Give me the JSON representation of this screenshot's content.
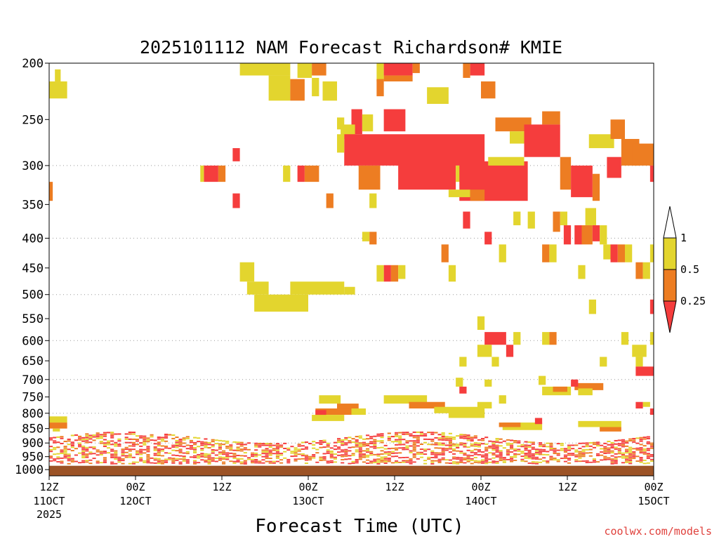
{
  "chart_data": {
    "type": "heatmap",
    "title": "2025101112 NAM Forecast Richardson# KMIE",
    "xlabel": "Forecast Time (UTC)",
    "ylabel": "",
    "credit": "coolwx.com/models",
    "y_axis": {
      "scale": "log-pressure",
      "range": [
        1025,
        200
      ],
      "ticks": [
        200,
        250,
        300,
        350,
        400,
        450,
        500,
        550,
        600,
        650,
        700,
        750,
        800,
        850,
        900,
        950,
        1000
      ]
    },
    "x_axis": {
      "range_hours": [
        0,
        84
      ],
      "ticks": [
        {
          "hour": 0,
          "top": "12Z",
          "bottom": "11OCT",
          "extra": "2025"
        },
        {
          "hour": 12,
          "top": "00Z",
          "bottom": "12OCT"
        },
        {
          "hour": 24,
          "top": "12Z",
          "bottom": ""
        },
        {
          "hour": 36,
          "top": "00Z",
          "bottom": "13OCT"
        },
        {
          "hour": 48,
          "top": "12Z",
          "bottom": ""
        },
        {
          "hour": 60,
          "top": "00Z",
          "bottom": "14OCT"
        },
        {
          "hour": 72,
          "top": "12Z",
          "bottom": ""
        },
        {
          "hour": 84,
          "top": "00Z",
          "bottom": "15OCT"
        }
      ]
    },
    "grid_pressures": [
      300,
      400,
      500,
      600,
      700,
      800,
      900,
      1000
    ],
    "colorbar": {
      "levels": [
        "1",
        "0.5",
        "0.25"
      ],
      "colors": {
        "lt025": "#f53d3d",
        "025_05": "#ed7d22",
        "05_1": "#e3d52e"
      }
    },
    "ground_color": "#9c5326",
    "cells": [
      {
        "t0": 0,
        "t1": 2.5,
        "p0": 215,
        "p1": 230,
        "c": "y"
      },
      {
        "t0": 0.8,
        "t1": 1.6,
        "p0": 205,
        "p1": 215,
        "c": "y"
      },
      {
        "t0": 0,
        "t1": 0.5,
        "p0": 320,
        "p1": 345,
        "c": "o"
      },
      {
        "t0": 26.5,
        "t1": 33.5,
        "p0": 200,
        "p1": 210,
        "c": "y"
      },
      {
        "t0": 30.5,
        "t1": 33.5,
        "p0": 210,
        "p1": 232,
        "c": "y"
      },
      {
        "t0": 34.5,
        "t1": 36.5,
        "p0": 200,
        "p1": 212,
        "c": "y"
      },
      {
        "t0": 36.5,
        "t1": 38.5,
        "p0": 200,
        "p1": 210,
        "c": "o"
      },
      {
        "t0": 33.5,
        "t1": 35.5,
        "p0": 213,
        "p1": 232,
        "c": "o"
      },
      {
        "t0": 36.5,
        "t1": 37.5,
        "p0": 212,
        "p1": 228,
        "c": "y"
      },
      {
        "t0": 38,
        "t1": 40,
        "p0": 215,
        "p1": 232,
        "c": "y"
      },
      {
        "t0": 40,
        "t1": 41,
        "p0": 248,
        "p1": 260,
        "c": "y"
      },
      {
        "t0": 45.5,
        "t1": 46.5,
        "p0": 200,
        "p1": 215,
        "c": "y"
      },
      {
        "t0": 46.5,
        "t1": 50.5,
        "p0": 200,
        "p1": 210,
        "c": "r"
      },
      {
        "t0": 50.5,
        "t1": 51.5,
        "p0": 200,
        "p1": 208,
        "c": "o"
      },
      {
        "t0": 45.5,
        "t1": 46.5,
        "p0": 213,
        "p1": 228,
        "c": "o"
      },
      {
        "t0": 46.5,
        "t1": 50.5,
        "p0": 210,
        "p1": 215,
        "c": "o"
      },
      {
        "t0": 57.5,
        "t1": 58.5,
        "p0": 200,
        "p1": 212,
        "c": "o"
      },
      {
        "t0": 58.5,
        "t1": 60.5,
        "p0": 200,
        "p1": 210,
        "c": "r"
      },
      {
        "t0": 60,
        "t1": 62,
        "p0": 215,
        "p1": 230,
        "c": "o"
      },
      {
        "t0": 52.5,
        "t1": 55.5,
        "p0": 220,
        "p1": 235,
        "c": "y"
      },
      {
        "t0": 42,
        "t1": 43.5,
        "p0": 240,
        "p1": 265,
        "c": "r"
      },
      {
        "t0": 43.5,
        "t1": 45,
        "p0": 245,
        "p1": 262,
        "c": "y"
      },
      {
        "t0": 46.5,
        "t1": 49.5,
        "p0": 240,
        "p1": 262,
        "c": "r"
      },
      {
        "t0": 40.5,
        "t1": 42.5,
        "p0": 255,
        "p1": 270,
        "c": "y"
      },
      {
        "t0": 41,
        "t1": 60.5,
        "p0": 265,
        "p1": 300,
        "c": "r"
      },
      {
        "t0": 40,
        "t1": 41,
        "p0": 265,
        "p1": 285,
        "c": "y"
      },
      {
        "t0": 43,
        "t1": 46,
        "p0": 300,
        "p1": 330,
        "c": "o"
      },
      {
        "t0": 48.5,
        "t1": 56.5,
        "p0": 295,
        "p1": 330,
        "c": "r"
      },
      {
        "t0": 56.5,
        "t1": 58.5,
        "p0": 300,
        "p1": 320,
        "c": "y"
      },
      {
        "t0": 57,
        "t1": 66.5,
        "p0": 295,
        "p1": 345,
        "c": "r"
      },
      {
        "t0": 55.5,
        "t1": 58.5,
        "p0": 330,
        "p1": 340,
        "c": "y"
      },
      {
        "t0": 58.5,
        "t1": 60.5,
        "p0": 330,
        "p1": 345,
        "c": "o"
      },
      {
        "t0": 61,
        "t1": 66,
        "p0": 290,
        "p1": 300,
        "c": "y"
      },
      {
        "t0": 62,
        "t1": 67,
        "p0": 248,
        "p1": 262,
        "c": "o"
      },
      {
        "t0": 64,
        "t1": 66,
        "p0": 262,
        "p1": 275,
        "c": "y"
      },
      {
        "t0": 66,
        "t1": 71,
        "p0": 255,
        "p1": 290,
        "c": "r"
      },
      {
        "t0": 68.5,
        "t1": 71,
        "p0": 242,
        "p1": 255,
        "c": "o"
      },
      {
        "t0": 71,
        "t1": 72.5,
        "p0": 290,
        "p1": 330,
        "c": "o"
      },
      {
        "t0": 72.5,
        "t1": 75.5,
        "p0": 300,
        "p1": 340,
        "c": "r"
      },
      {
        "t0": 75.5,
        "t1": 76.5,
        "p0": 310,
        "p1": 345,
        "c": "o"
      },
      {
        "t0": 75,
        "t1": 78.5,
        "p0": 265,
        "p1": 280,
        "c": "y"
      },
      {
        "t0": 78,
        "t1": 80,
        "p0": 250,
        "p1": 270,
        "c": "o"
      },
      {
        "t0": 77.5,
        "t1": 79.5,
        "p0": 290,
        "p1": 315,
        "c": "r"
      },
      {
        "t0": 79.5,
        "t1": 82,
        "p0": 270,
        "p1": 300,
        "c": "o"
      },
      {
        "t0": 81,
        "t1": 84,
        "p0": 275,
        "p1": 300,
        "c": "o"
      },
      {
        "t0": 83.5,
        "t1": 84,
        "p0": 300,
        "p1": 320,
        "c": "r"
      },
      {
        "t0": 21.5,
        "t1": 23.5,
        "p0": 300,
        "p1": 320,
        "c": "r"
      },
      {
        "t0": 21,
        "t1": 21.5,
        "p0": 300,
        "p1": 320,
        "c": "y"
      },
      {
        "t0": 23.5,
        "t1": 24.5,
        "p0": 300,
        "p1": 320,
        "c": "o"
      },
      {
        "t0": 25.5,
        "t1": 26.5,
        "p0": 280,
        "p1": 295,
        "c": "r"
      },
      {
        "t0": 25.5,
        "t1": 26.5,
        "p0": 335,
        "p1": 355,
        "c": "r"
      },
      {
        "t0": 32.5,
        "t1": 33.5,
        "p0": 300,
        "p1": 320,
        "c": "y"
      },
      {
        "t0": 34.5,
        "t1": 35.5,
        "p0": 300,
        "p1": 320,
        "c": "r"
      },
      {
        "t0": 35.5,
        "t1": 37.5,
        "p0": 300,
        "p1": 320,
        "c": "o"
      },
      {
        "t0": 38.5,
        "t1": 39.5,
        "p0": 335,
        "p1": 355,
        "c": "o"
      },
      {
        "t0": 44.5,
        "t1": 45.5,
        "p0": 335,
        "p1": 355,
        "c": "y"
      },
      {
        "t0": 44.5,
        "t1": 45.5,
        "p0": 390,
        "p1": 410,
        "c": "o"
      },
      {
        "t0": 43.5,
        "t1": 44.5,
        "p0": 390,
        "p1": 405,
        "c": "y"
      },
      {
        "t0": 57.5,
        "t1": 58.5,
        "p0": 360,
        "p1": 385,
        "c": "r"
      },
      {
        "t0": 60.5,
        "t1": 61.5,
        "p0": 390,
        "p1": 410,
        "c": "r"
      },
      {
        "t0": 64.5,
        "t1": 65.5,
        "p0": 360,
        "p1": 380,
        "c": "y"
      },
      {
        "t0": 66.5,
        "t1": 67.5,
        "p0": 360,
        "p1": 385,
        "c": "y"
      },
      {
        "t0": 70,
        "t1": 71,
        "p0": 360,
        "p1": 390,
        "c": "o"
      },
      {
        "t0": 71,
        "t1": 72,
        "p0": 360,
        "p1": 380,
        "c": "y"
      },
      {
        "t0": 71.5,
        "t1": 72.5,
        "p0": 380,
        "p1": 410,
        "c": "r"
      },
      {
        "t0": 73,
        "t1": 74,
        "p0": 380,
        "p1": 410,
        "c": "r"
      },
      {
        "t0": 74,
        "t1": 75.5,
        "p0": 380,
        "p1": 410,
        "c": "o"
      },
      {
        "t0": 75.5,
        "t1": 76.5,
        "p0": 380,
        "p1": 405,
        "c": "r"
      },
      {
        "t0": 76.5,
        "t1": 77.5,
        "p0": 380,
        "p1": 410,
        "c": "y"
      },
      {
        "t0": 74.5,
        "t1": 76,
        "p0": 355,
        "p1": 380,
        "c": "y"
      },
      {
        "t0": 77,
        "t1": 78,
        "p0": 410,
        "p1": 435,
        "c": "y"
      },
      {
        "t0": 78,
        "t1": 79,
        "p0": 410,
        "p1": 440,
        "c": "r"
      },
      {
        "t0": 79,
        "t1": 80,
        "p0": 410,
        "p1": 440,
        "c": "o"
      },
      {
        "t0": 80,
        "t1": 81,
        "p0": 410,
        "p1": 440,
        "c": "y"
      },
      {
        "t0": 81.5,
        "t1": 82.5,
        "p0": 440,
        "p1": 470,
        "c": "o"
      },
      {
        "t0": 82.5,
        "t1": 83.5,
        "p0": 440,
        "p1": 470,
        "c": "y"
      },
      {
        "t0": 68.5,
        "t1": 69.5,
        "p0": 410,
        "p1": 440,
        "c": "o"
      },
      {
        "t0": 69.5,
        "t1": 70.5,
        "p0": 410,
        "p1": 440,
        "c": "y"
      },
      {
        "t0": 62.5,
        "t1": 63.5,
        "p0": 410,
        "p1": 440,
        "c": "y"
      },
      {
        "t0": 54.5,
        "t1": 55.5,
        "p0": 410,
        "p1": 440,
        "c": "o"
      },
      {
        "t0": 55.5,
        "t1": 56.5,
        "p0": 445,
        "p1": 475,
        "c": "y"
      },
      {
        "t0": 46.5,
        "t1": 47.5,
        "p0": 445,
        "p1": 475,
        "c": "r"
      },
      {
        "t0": 47.5,
        "t1": 48.5,
        "p0": 445,
        "p1": 475,
        "c": "o"
      },
      {
        "t0": 45.5,
        "t1": 46.5,
        "p0": 445,
        "p1": 475,
        "c": "y"
      },
      {
        "t0": 48.5,
        "t1": 49.5,
        "p0": 445,
        "p1": 470,
        "c": "y"
      },
      {
        "t0": 73.5,
        "t1": 74.5,
        "p0": 445,
        "p1": 470,
        "c": "y"
      },
      {
        "t0": 83.5,
        "t1": 84,
        "p0": 410,
        "p1": 440,
        "c": "y"
      },
      {
        "t0": 26.5,
        "t1": 28.5,
        "p0": 440,
        "p1": 475,
        "c": "y"
      },
      {
        "t0": 27.5,
        "t1": 30.5,
        "p0": 475,
        "p1": 500,
        "c": "y"
      },
      {
        "t0": 28.5,
        "t1": 36,
        "p0": 500,
        "p1": 535,
        "c": "y"
      },
      {
        "t0": 33.5,
        "t1": 41,
        "p0": 475,
        "p1": 500,
        "c": "y"
      },
      {
        "t0": 41,
        "t1": 42.5,
        "p0": 485,
        "p1": 500,
        "c": "y"
      },
      {
        "t0": 83.5,
        "t1": 84,
        "p0": 510,
        "p1": 540,
        "c": "r"
      },
      {
        "t0": 75,
        "t1": 76,
        "p0": 510,
        "p1": 540,
        "c": "y"
      },
      {
        "t0": 59.5,
        "t1": 60.5,
        "p0": 545,
        "p1": 575,
        "c": "y"
      },
      {
        "t0": 60.5,
        "t1": 63.5,
        "p0": 580,
        "p1": 610,
        "c": "r"
      },
      {
        "t0": 64.5,
        "t1": 65.5,
        "p0": 580,
        "p1": 610,
        "c": "y"
      },
      {
        "t0": 68.5,
        "t1": 69.5,
        "p0": 580,
        "p1": 610,
        "c": "y"
      },
      {
        "t0": 69.5,
        "t1": 70.5,
        "p0": 580,
        "p1": 610,
        "c": "o"
      },
      {
        "t0": 59.5,
        "t1": 61.5,
        "p0": 610,
        "p1": 640,
        "c": "y"
      },
      {
        "t0": 63.5,
        "t1": 64.5,
        "p0": 610,
        "p1": 640,
        "c": "r"
      },
      {
        "t0": 79.5,
        "t1": 80.5,
        "p0": 580,
        "p1": 610,
        "c": "y"
      },
      {
        "t0": 81,
        "t1": 83,
        "p0": 610,
        "p1": 640,
        "c": "y"
      },
      {
        "t0": 83.5,
        "t1": 84,
        "p0": 580,
        "p1": 610,
        "c": "y"
      },
      {
        "t0": 57,
        "t1": 58,
        "p0": 640,
        "p1": 665,
        "c": "y"
      },
      {
        "t0": 61.5,
        "t1": 62.5,
        "p0": 640,
        "p1": 665,
        "c": "y"
      },
      {
        "t0": 76.5,
        "t1": 77.5,
        "p0": 640,
        "p1": 665,
        "c": "y"
      },
      {
        "t0": 81.5,
        "t1": 82.5,
        "p0": 640,
        "p1": 665,
        "c": "y"
      },
      {
        "t0": 81.5,
        "t1": 84,
        "p0": 665,
        "p1": 690,
        "c": "r"
      },
      {
        "t0": 56.5,
        "t1": 57.5,
        "p0": 695,
        "p1": 720,
        "c": "y"
      },
      {
        "t0": 68,
        "t1": 69,
        "p0": 690,
        "p1": 715,
        "c": "y"
      },
      {
        "t0": 68.5,
        "t1": 72.5,
        "p0": 720,
        "p1": 745,
        "c": "y"
      },
      {
        "t0": 70,
        "t1": 72,
        "p0": 720,
        "p1": 735,
        "c": "o"
      },
      {
        "t0": 73,
        "t1": 77,
        "p0": 710,
        "p1": 730,
        "c": "o"
      },
      {
        "t0": 72.5,
        "t1": 73.5,
        "p0": 700,
        "p1": 720,
        "c": "r"
      },
      {
        "t0": 73.5,
        "t1": 75.5,
        "p0": 725,
        "p1": 745,
        "c": "y"
      },
      {
        "t0": 57,
        "t1": 58,
        "p0": 720,
        "p1": 740,
        "c": "r"
      },
      {
        "t0": 60.5,
        "t1": 61.5,
        "p0": 700,
        "p1": 720,
        "c": "y"
      },
      {
        "t0": 62.5,
        "t1": 63.5,
        "p0": 745,
        "p1": 770,
        "c": "y"
      },
      {
        "t0": 37.5,
        "t1": 40.5,
        "p0": 745,
        "p1": 770,
        "c": "y"
      },
      {
        "t0": 40,
        "t1": 43,
        "p0": 770,
        "p1": 790,
        "c": "o"
      },
      {
        "t0": 42,
        "t1": 44,
        "p0": 785,
        "p1": 805,
        "c": "y"
      },
      {
        "t0": 37,
        "t1": 42,
        "p0": 785,
        "p1": 805,
        "c": "o"
      },
      {
        "t0": 37,
        "t1": 38.5,
        "p0": 790,
        "p1": 810,
        "c": "r"
      },
      {
        "t0": 36.5,
        "t1": 41,
        "p0": 805,
        "p1": 825,
        "c": "y"
      },
      {
        "t0": 46.5,
        "t1": 52.5,
        "p0": 745,
        "p1": 770,
        "c": "y"
      },
      {
        "t0": 50,
        "t1": 55,
        "p0": 765,
        "p1": 785,
        "c": "o"
      },
      {
        "t0": 53.5,
        "t1": 60.5,
        "p0": 780,
        "p1": 800,
        "c": "y"
      },
      {
        "t0": 55.5,
        "t1": 60.5,
        "p0": 795,
        "p1": 815,
        "c": "y"
      },
      {
        "t0": 59.5,
        "t1": 61.5,
        "p0": 765,
        "p1": 785,
        "c": "y"
      },
      {
        "t0": 63,
        "t1": 68.5,
        "p0": 830,
        "p1": 855,
        "c": "y"
      },
      {
        "t0": 62.5,
        "t1": 65.5,
        "p0": 830,
        "p1": 845,
        "c": "o"
      },
      {
        "t0": 67.5,
        "t1": 68.5,
        "p0": 815,
        "p1": 835,
        "c": "r"
      },
      {
        "t0": 81.5,
        "t1": 82.5,
        "p0": 765,
        "p1": 785,
        "c": "r"
      },
      {
        "t0": 83.5,
        "t1": 84,
        "p0": 785,
        "p1": 805,
        "c": "r"
      },
      {
        "t0": 82.5,
        "t1": 83.5,
        "p0": 765,
        "p1": 780,
        "c": "y"
      },
      {
        "t0": 0,
        "t1": 2.5,
        "p0": 810,
        "p1": 830,
        "c": "y"
      },
      {
        "t0": 0,
        "t1": 2.5,
        "p0": 830,
        "p1": 850,
        "c": "o"
      },
      {
        "t0": 0.5,
        "t1": 1.5,
        "p0": 850,
        "p1": 860,
        "c": "y"
      },
      {
        "t0": 73.5,
        "t1": 79.5,
        "p0": 825,
        "p1": 845,
        "c": "y"
      },
      {
        "t0": 76.5,
        "t1": 79.5,
        "p0": 845,
        "p1": 860,
        "c": "o"
      }
    ],
    "bands": [
      {
        "t0": 0,
        "t1": 84,
        "p_top": 860,
        "p_bot": 975,
        "seed": 7
      }
    ]
  }
}
